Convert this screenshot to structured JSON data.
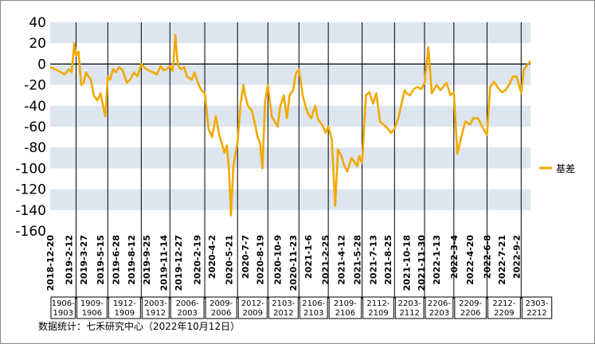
{
  "chart_data": {
    "type": "line",
    "title": "",
    "xlabel": "",
    "ylabel": "",
    "ylim": [
      -160,
      40
    ],
    "yticks": [
      40,
      20,
      0,
      -20,
      -40,
      -60,
      -80,
      -100,
      -120,
      -140,
      -160
    ],
    "grid": "alternating horizontal bands",
    "legend_position": "right",
    "series": [
      {
        "name": "基差",
        "color": "#F2A900",
        "x": [
          "2018-12-20",
          "2019-1-10",
          "2019-1-31",
          "2019-2-12",
          "2019-2-20",
          "2019-2-28",
          "2019-3-5",
          "2019-3-12",
          "2019-3-20",
          "2019-3-27",
          "2019-4-3",
          "2019-4-10",
          "2019-4-17",
          "2019-4-25",
          "2019-5-6",
          "2019-5-15",
          "2019-5-22",
          "2019-5-29",
          "2019-6-5",
          "2019-6-12",
          "2019-6-20",
          "2019-6-28",
          "2019-7-8",
          "2019-7-18",
          "2019-7-30",
          "2019-8-9",
          "2019-8-20",
          "2019-8-30",
          "2019-9-10",
          "2019-9-18",
          "2019-9-25",
          "2019-10-15",
          "2019-10-25",
          "2019-11-5",
          "2019-11-14",
          "2019-11-22",
          "2019-12-2",
          "2019-12-10",
          "2019-12-18",
          "2019-12-23",
          "2019-12-27",
          "2020-1-3",
          "2020-1-13",
          "2020-1-20",
          "2020-2-3",
          "2020-2-11",
          "2020-2-19",
          "2020-3-2",
          "2020-3-12",
          "2020-3-23",
          "2020-4-2",
          "2020-4-13",
          "2020-4-23",
          "2020-5-8",
          "2020-5-15",
          "2020-5-21",
          "2020-5-27",
          "2020-6-3",
          "2020-6-15",
          "2020-6-24",
          "2020-7-2",
          "2020-7-7",
          "2020-7-15",
          "2020-7-27",
          "2020-8-5",
          "2020-8-12",
          "2020-8-19",
          "2020-8-26",
          "2020-9-3",
          "2020-9-11",
          "2020-9-22",
          "2020-10-9",
          "2020-10-16",
          "2020-10-27",
          "2020-11-5",
          "2020-11-13",
          "2020-11-23",
          "2020-12-1",
          "2020-12-10",
          "2020-12-21",
          "2020-12-30",
          "2021-1-6",
          "2021-1-15",
          "2021-1-26",
          "2021-2-3",
          "2021-2-18",
          "2021-2-25",
          "2021-3-5",
          "2021-3-15",
          "2021-3-25",
          "2021-4-2",
          "2021-4-12",
          "2021-4-20",
          "2021-4-29",
          "2021-5-11",
          "2021-5-20",
          "2021-5-28",
          "2021-6-3",
          "2021-6-11",
          "2021-6-22",
          "2021-7-2",
          "2021-7-13",
          "2021-7-22",
          "2021-8-2",
          "2021-8-12",
          "2021-8-25",
          "2021-9-3",
          "2021-9-13",
          "2021-9-24",
          "2021-10-12",
          "2021-10-18",
          "2021-10-28",
          "2021-11-8",
          "2021-11-18",
          "2021-11-30",
          "2021-12-9",
          "2021-12-20",
          "2021-12-30",
          "2022-1-13",
          "2022-1-24",
          "2022-2-11",
          "2022-2-22",
          "2022-3-4",
          "2022-3-14",
          "2022-3-24",
          "2022-4-6",
          "2022-4-20",
          "2022-4-29",
          "2022-5-13",
          "2022-5-25",
          "2022-6-8",
          "2022-6-17",
          "2022-6-28",
          "2022-7-8",
          "2022-7-21",
          "2022-8-1",
          "2022-8-11",
          "2022-8-22",
          "2022-9-2",
          "2022-9-15",
          "2022-9-23",
          "2022-10-12"
        ],
        "values": [
          -3,
          -6,
          -10,
          -5,
          -8,
          20,
          8,
          12,
          -20,
          -18,
          -8,
          -12,
          -15,
          -30,
          -35,
          -28,
          -40,
          -50,
          -12,
          -15,
          -5,
          -8,
          -3,
          -6,
          -18,
          -15,
          -8,
          -12,
          0,
          -3,
          -5,
          -8,
          -10,
          -2,
          -6,
          -5,
          -2,
          -7,
          28,
          5,
          -2,
          -5,
          -3,
          -12,
          -15,
          -8,
          -16,
          -25,
          -28,
          -62,
          -70,
          -50,
          -68,
          -85,
          -78,
          -100,
          -145,
          -98,
          -75,
          -38,
          -20,
          -30,
          -40,
          -45,
          -58,
          -70,
          -75,
          -100,
          -35,
          -20,
          -50,
          -60,
          -42,
          -30,
          -52,
          -30,
          -25,
          -9,
          -5,
          -30,
          -42,
          -48,
          -52,
          -40,
          -53,
          -60,
          -66,
          -60,
          -72,
          -136,
          -82,
          -88,
          -97,
          -103,
          -90,
          -94,
          -98,
          -88,
          -95,
          -30,
          -27,
          -38,
          -28,
          -55,
          -58,
          -62,
          -66,
          -62,
          -52,
          -25,
          -28,
          -30,
          -24,
          -22,
          -24,
          -18,
          16,
          -28,
          -20,
          -25,
          -18,
          -30,
          -27,
          -86,
          -72,
          -55,
          -58,
          -52,
          -52,
          -60,
          -68,
          -22,
          -17,
          -22,
          -27,
          -25,
          -20,
          -12,
          -12,
          -28,
          -5,
          3
        ]
      }
    ],
    "x_tick_labels": [
      "2018-12-20",
      "2019-2-12",
      "2019-3-27",
      "2019-5-15",
      "2019-6-28",
      "2019-8-12",
      "2019-9-25",
      "2019-11-14",
      "2019-12-27",
      "2020-2-19",
      "2020-4-2",
      "2020-5-21",
      "2020-7-7",
      "2020-8-19",
      "2020-10-9",
      "2020-11-23",
      "2021-1-6",
      "2021-2-25",
      "2021-4-12",
      "2021-5-28",
      "2021-7-13",
      "2021-8-25",
      "2021-10-18",
      "2021-11-30",
      "2022-1-13",
      "2022-3-4",
      "2022-4-20",
      "2022-6-8",
      "2022-7-21",
      "2022-9-2"
    ],
    "contract_periods": [
      {
        "label": "1906-\n1903",
        "start": "2018-12-20",
        "end": "2019-3-5"
      },
      {
        "label": "1909-\n1906",
        "start": "2019-3-5",
        "end": "2019-6-5"
      },
      {
        "label": "1912-\n1909",
        "start": "2019-6-5",
        "end": "2019-9-10"
      },
      {
        "label": "2003-\n1912",
        "start": "2019-9-10",
        "end": "2019-12-2"
      },
      {
        "label": "2006-\n2003",
        "start": "2019-12-2",
        "end": "2020-3-12"
      },
      {
        "label": "2009-\n2006",
        "start": "2020-3-12",
        "end": "2020-6-15"
      },
      {
        "label": "2012-\n2009",
        "start": "2020-6-15",
        "end": "2020-9-11"
      },
      {
        "label": "2103-\n2012",
        "start": "2020-9-11",
        "end": "2020-12-10"
      },
      {
        "label": "2106-\n2103",
        "start": "2020-12-10",
        "end": "2021-3-5"
      },
      {
        "label": "2109-\n2106",
        "start": "2021-3-5",
        "end": "2021-6-11"
      },
      {
        "label": "2112-\n2109",
        "start": "2021-6-11",
        "end": "2021-9-13"
      },
      {
        "label": "2203-\n2112",
        "start": "2021-9-13",
        "end": "2021-12-9"
      },
      {
        "label": "2206-\n2203",
        "start": "2021-12-9",
        "end": "2022-3-4"
      },
      {
        "label": "2209-\n2206",
        "start": "2022-3-4",
        "end": "2022-6-8"
      },
      {
        "label": "2212-\n2209",
        "start": "2022-6-8",
        "end": "2022-9-15"
      },
      {
        "label": "2303-\n2212",
        "start": "2022-9-15",
        "end": "2022-12-15"
      }
    ]
  },
  "source_text": "数据统计：七禾研究中心（2022年10月12日）"
}
